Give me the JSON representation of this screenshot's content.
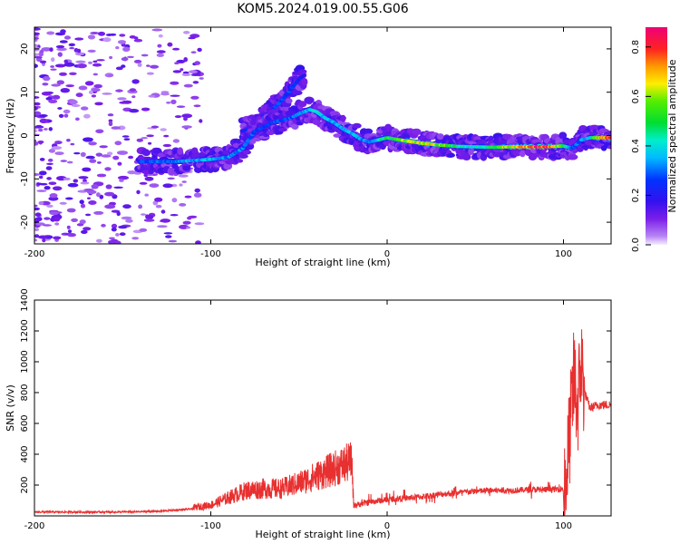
{
  "title": "KOM5.2024.019.00.55.G06",
  "colorbar": {
    "label": "Normalized spectral amplitude",
    "ticks": [
      "0.0",
      "0.2",
      "0.4",
      "0.6",
      "0.8"
    ]
  },
  "chart_data": [
    {
      "type": "heatmap",
      "title": "",
      "xlabel": "Height of straight line (km)",
      "ylabel": "Frequency (Hz)",
      "xlim": [
        -200,
        127
      ],
      "ylim": [
        -25,
        25
      ],
      "x_ticks": [
        "-200",
        "-100",
        "0",
        "100"
      ],
      "y_ticks": [
        "-20",
        "-10",
        "0",
        "10",
        "20"
      ],
      "color_range": [
        0,
        0.88
      ],
      "ridge": {
        "x": [
          -140,
          -120,
          -100,
          -90,
          -82,
          -75,
          -65,
          -55,
          -50,
          -44,
          -40,
          -35,
          -30,
          -25,
          -20,
          -15,
          -10,
          -5,
          0,
          10,
          20,
          30,
          40,
          50,
          60,
          70,
          80,
          90,
          100,
          105,
          110,
          115,
          120,
          127
        ],
        "y": [
          -6,
          -6,
          -5.5,
          -5,
          -3,
          1,
          3,
          4,
          5,
          6,
          5.5,
          4,
          3,
          1.5,
          0.5,
          -0.8,
          -1.5,
          -1,
          -0.5,
          -1.2,
          -1.8,
          -2.2,
          -2.5,
          -2.6,
          -2.7,
          -2.6,
          -2.6,
          -2.6,
          -2.4,
          -3,
          -1,
          -0.5,
          -0.5,
          -0.5
        ],
        "amplitude": [
          0.3,
          0.35,
          0.4,
          0.35,
          0.35,
          0.3,
          0.3,
          0.32,
          0.36,
          0.42,
          0.45,
          0.42,
          0.4,
          0.38,
          0.42,
          0.38,
          0.35,
          0.4,
          0.55,
          0.65,
          0.72,
          0.68,
          0.5,
          0.45,
          0.55,
          0.7,
          0.85,
          0.88,
          0.6,
          0.3,
          0.35,
          0.45,
          0.72,
          0.85
        ]
      },
      "secondary_branch": {
        "x": [
          -82,
          -75,
          -70,
          -65,
          -60,
          -56,
          -53,
          -50,
          -47
        ],
        "y": [
          1,
          2,
          4,
          6,
          8,
          10,
          11.5,
          13,
          14
        ],
        "amplitude": [
          0.25,
          0.28,
          0.3,
          0.28,
          0.3,
          0.3,
          0.28,
          0.25,
          0.22
        ]
      },
      "colors": {
        "frame": "#000000"
      }
    },
    {
      "type": "line",
      "title": "",
      "xlabel": "Height of straight line (km)",
      "ylabel": "SNR (v/v)",
      "xlim": [
        -200,
        127
      ],
      "ylim": [
        0,
        1400
      ],
      "x_ticks": [
        "-200",
        "-100",
        "0",
        "100"
      ],
      "y_ticks": [
        "200",
        "400",
        "600",
        "800",
        "1000",
        "1200",
        "1400"
      ],
      "series": [
        {
          "name": "",
          "color": "#e83030",
          "x": [
            -200,
            -150,
            -130,
            -110,
            -100,
            -90,
            -80,
            -70,
            -60,
            -50,
            -45,
            -40,
            -35,
            -30,
            -25,
            -20,
            -19,
            -18,
            -10,
            0,
            10,
            20,
            30,
            40,
            50,
            60,
            70,
            80,
            90,
            100,
            102,
            104,
            106,
            108,
            110,
            112,
            115,
            120,
            127
          ],
          "y": [
            25,
            25,
            30,
            45,
            60,
            100,
            140,
            150,
            150,
            180,
            200,
            220,
            240,
            260,
            280,
            300,
            60,
            70,
            90,
            105,
            115,
            125,
            140,
            150,
            160,
            165,
            165,
            170,
            170,
            175,
            300,
            600,
            900,
            700,
            1000,
            800,
            700,
            720,
            720
          ]
        }
      ]
    }
  ]
}
